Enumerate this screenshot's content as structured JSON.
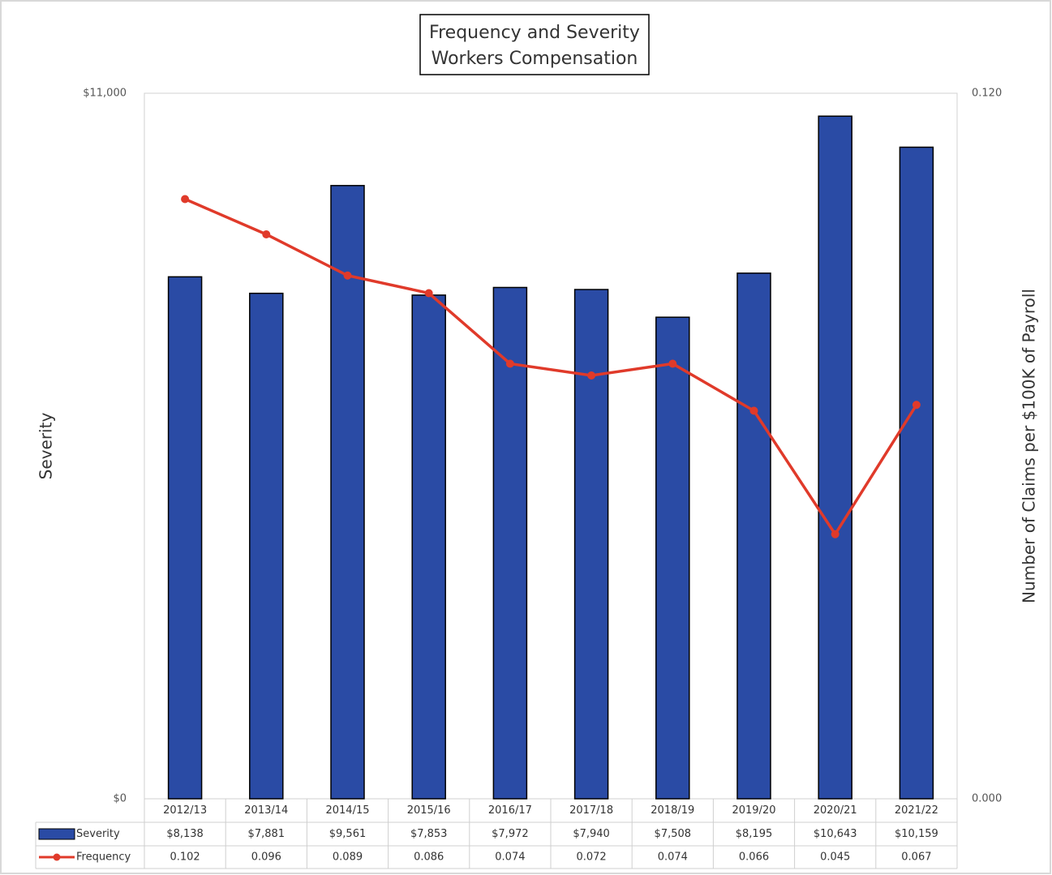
{
  "chart_data": {
    "type": "bar_line",
    "title": [
      "Frequency and Severity",
      "Workers Compensation"
    ],
    "ylabel": "Severity",
    "y2label": "Number of Claims per $100K of Payroll",
    "categories": [
      "2012/13",
      "2013/14",
      "2014/15",
      "2015/16",
      "2016/17",
      "2017/18",
      "2018/19",
      "2019/20",
      "2020/21",
      "2021/22"
    ],
    "series": [
      {
        "name": "Severity",
        "type": "bar",
        "color": "#2a4ba5",
        "values": [
          8138,
          7881,
          9561,
          7853,
          7972,
          7940,
          7508,
          8195,
          10643,
          10159
        ],
        "value_labels": [
          "$8,138",
          "$7,881",
          "$9,561",
          "$7,853",
          "$7,972",
          "$7,940",
          "$7,508",
          "$8,195",
          "$10,643",
          "$10,159"
        ]
      },
      {
        "name": "Frequency",
        "type": "line",
        "axis": "y2",
        "color": "#e03a2a",
        "values": [
          0.102,
          0.096,
          0.089,
          0.086,
          0.074,
          0.072,
          0.074,
          0.066,
          0.045,
          0.067
        ]
      }
    ],
    "ylim": [
      0,
      11000
    ],
    "yticks": [
      {
        "value": 0,
        "label": "$0"
      },
      {
        "value": 11000,
        "label": "$11,000"
      }
    ],
    "y2lim": [
      0,
      0.12
    ],
    "y2ticks": [
      {
        "value": 0,
        "label": "0.000"
      },
      {
        "value": 0.12,
        "label": "0.120"
      }
    ]
  }
}
